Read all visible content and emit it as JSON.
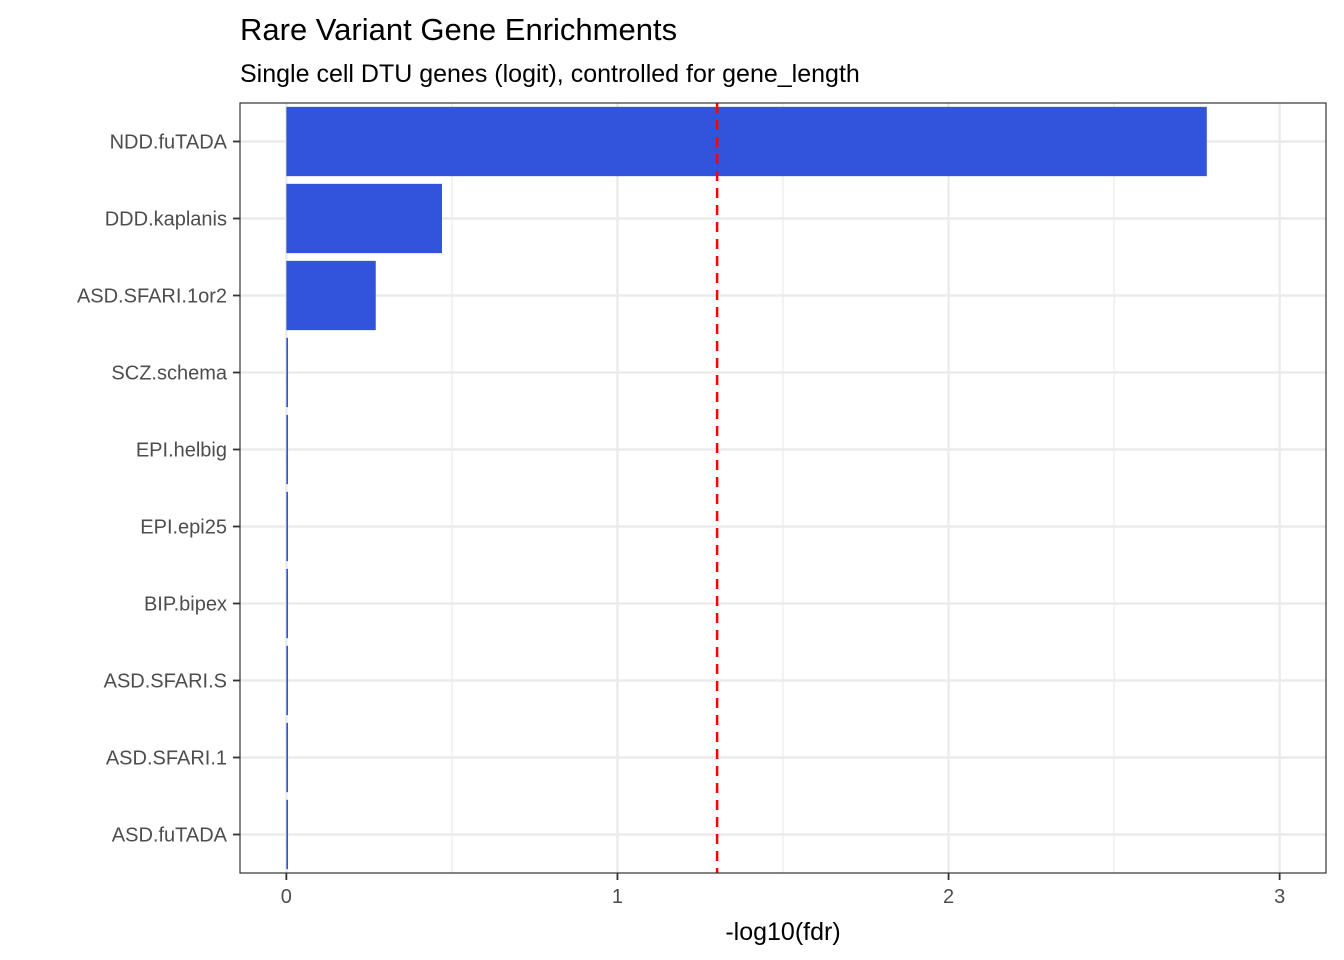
{
  "chart_data": {
    "type": "bar",
    "orientation": "horizontal",
    "title": "Rare Variant Gene Enrichments",
    "subtitle": "Single cell DTU genes (logit), controlled for gene_length",
    "xlabel": "-log10(fdr)",
    "ylabel": "",
    "categories": [
      "NDD.fuTADA",
      "DDD.kaplanis",
      "ASD.SFARI.1or2",
      "SCZ.schema",
      "EPI.helbig",
      "EPI.epi25",
      "BIP.bipex",
      "ASD.SFARI.S",
      "ASD.SFARI.1",
      "ASD.fuTADA"
    ],
    "values": [
      2.78,
      0.47,
      0.27,
      0.005,
      0.005,
      0.005,
      0.005,
      0.005,
      0.005,
      0.005
    ],
    "xlim": [
      -0.14,
      3.14
    ],
    "xticks": [
      "0",
      "1",
      "2",
      "3"
    ],
    "threshold_line": {
      "value": 1.301,
      "color": "#ff0000",
      "style": "dashed"
    },
    "bar_color": "#3253dc",
    "grid": true,
    "legend": "none"
  }
}
